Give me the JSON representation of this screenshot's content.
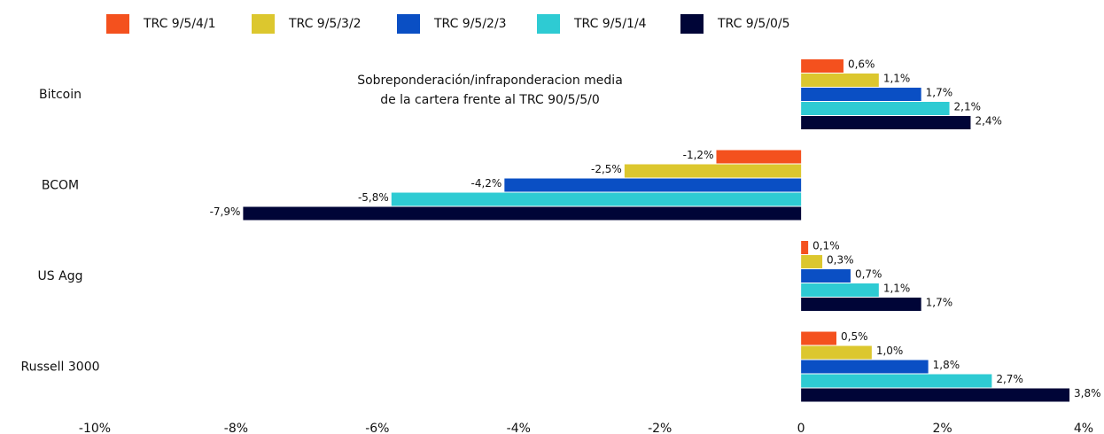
{
  "chart_data": {
    "type": "hbar",
    "annotation": [
      "Sobreponderación/infraponderacion media",
      "de la cartera frente al TRC 90/5/5/0"
    ],
    "categories": [
      "Bitcoin",
      "BCOM",
      "US Agg",
      "Russell 3000"
    ],
    "series": [
      {
        "name": "TRC 9/5/4/1",
        "color": "#f4511e",
        "values": [
          0.6,
          -1.2,
          0.1,
          0.5
        ],
        "value_labels": [
          "0,6%",
          "-1,2%",
          "0,1%",
          "0,5%"
        ]
      },
      {
        "name": "TRC 9/5/3/2",
        "color": "#dcc72e",
        "values": [
          1.1,
          -2.5,
          0.3,
          1.0
        ],
        "value_labels": [
          "1,1%",
          "-2,5%",
          "0,3%",
          "1,0%"
        ]
      },
      {
        "name": "TRC 9/5/2/3",
        "color": "#0a4fc4",
        "values": [
          1.7,
          -4.2,
          0.7,
          1.8
        ],
        "value_labels": [
          "1,7%",
          "-4,2%",
          "0,7%",
          "1,8%"
        ]
      },
      {
        "name": "TRC 9/5/1/4",
        "color": "#2ecbd3",
        "values": [
          2.1,
          -5.8,
          1.1,
          2.7
        ],
        "value_labels": [
          "2,1%",
          "-5,8%",
          "1,1%",
          "2,7%"
        ]
      },
      {
        "name": "TRC 9/5/0/5",
        "color": "#000537",
        "values": [
          2.4,
          -7.9,
          1.7,
          3.8
        ],
        "value_labels": [
          "2,4%",
          "-7,9%",
          "1,7%",
          "3,8%"
        ]
      }
    ],
    "xlim": [
      -10,
      4
    ],
    "xticks": [
      {
        "value": -10,
        "label": "-10%"
      },
      {
        "value": -8,
        "label": "-8%"
      },
      {
        "value": -6,
        "label": "-6%"
      },
      {
        "value": -4,
        "label": "-4%"
      },
      {
        "value": -2,
        "label": "-2%"
      },
      0,
      {
        "value": 2,
        "label": "2%"
      },
      {
        "value": 4,
        "label": "4%"
      }
    ],
    "grid": false
  }
}
